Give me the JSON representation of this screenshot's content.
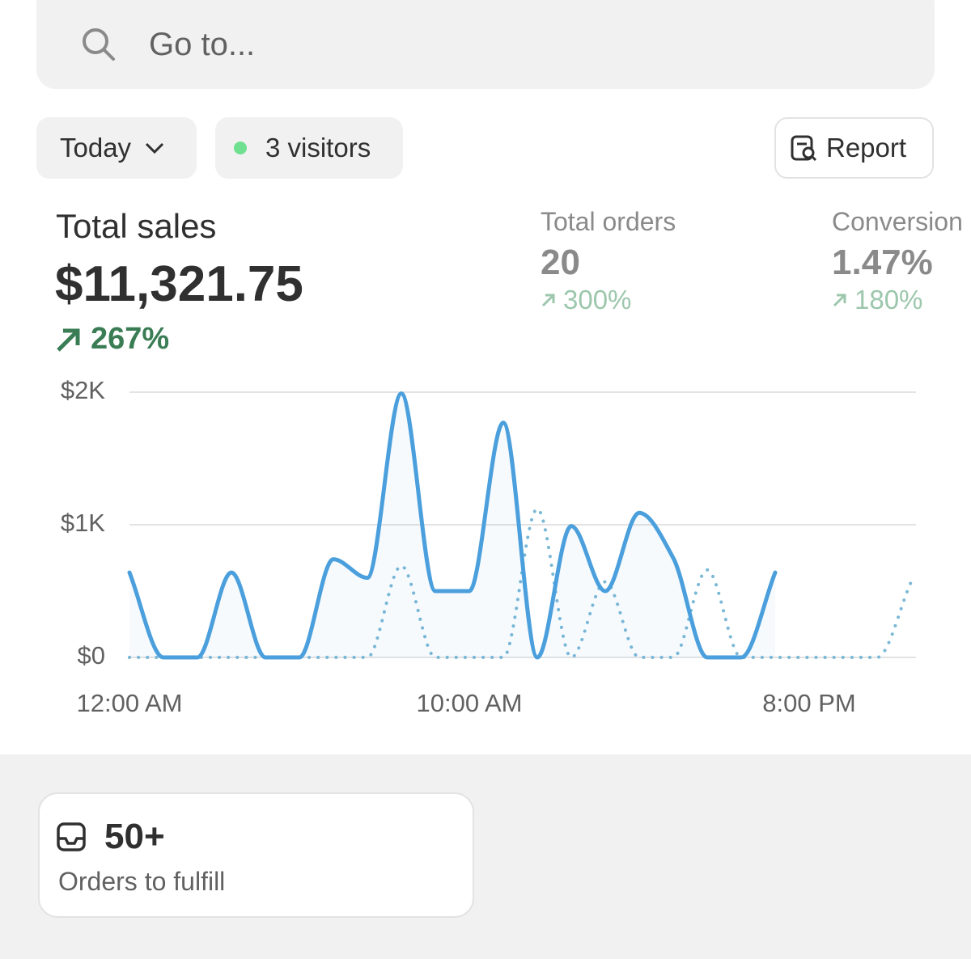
{
  "search": {
    "placeholder": "Go to..."
  },
  "filters": {
    "period": "Today",
    "visitors": "3 visitors",
    "report": "Report"
  },
  "metrics": {
    "total_sales": {
      "label": "Total sales",
      "value": "$11,321.75",
      "change": "267%"
    },
    "total_orders": {
      "label": "Total orders",
      "value": "20",
      "change": "300%"
    },
    "conversion": {
      "label": "Conversion",
      "value": "1.47%",
      "change": "180%"
    }
  },
  "chart_data": {
    "type": "line",
    "categories": [
      "12:00 AM",
      null,
      null,
      null,
      null,
      null,
      null,
      null,
      null,
      null,
      "10:00 AM",
      null,
      null,
      null,
      null,
      null,
      null,
      null,
      null,
      null,
      "8:00 PM",
      null,
      null,
      null
    ],
    "series": [
      {
        "color": "#4a9fdc",
        "style": "solid",
        "values": [
          640,
          0,
          0,
          640,
          0,
          0,
          740,
          600,
          1990,
          500,
          500,
          1770,
          0,
          990,
          500,
          1090,
          750,
          0,
          0,
          640,
          null,
          null,
          null,
          null
        ]
      },
      {
        "color": "#7ab8d6",
        "style": "dotted",
        "values": [
          0,
          0,
          0,
          0,
          0,
          0,
          0,
          0,
          690,
          0,
          0,
          0,
          1120,
          0,
          570,
          0,
          0,
          660,
          0,
          0,
          0,
          0,
          0,
          570
        ]
      }
    ],
    "ylim": [
      0,
      2000
    ],
    "yticks": [
      {
        "value": 0,
        "label": "$0"
      },
      {
        "value": 1000,
        "label": "$1K"
      },
      {
        "value": 2000,
        "label": "$2K"
      }
    ],
    "grid": true
  },
  "card": {
    "value": "50+",
    "label": "Orders to fulfill"
  }
}
